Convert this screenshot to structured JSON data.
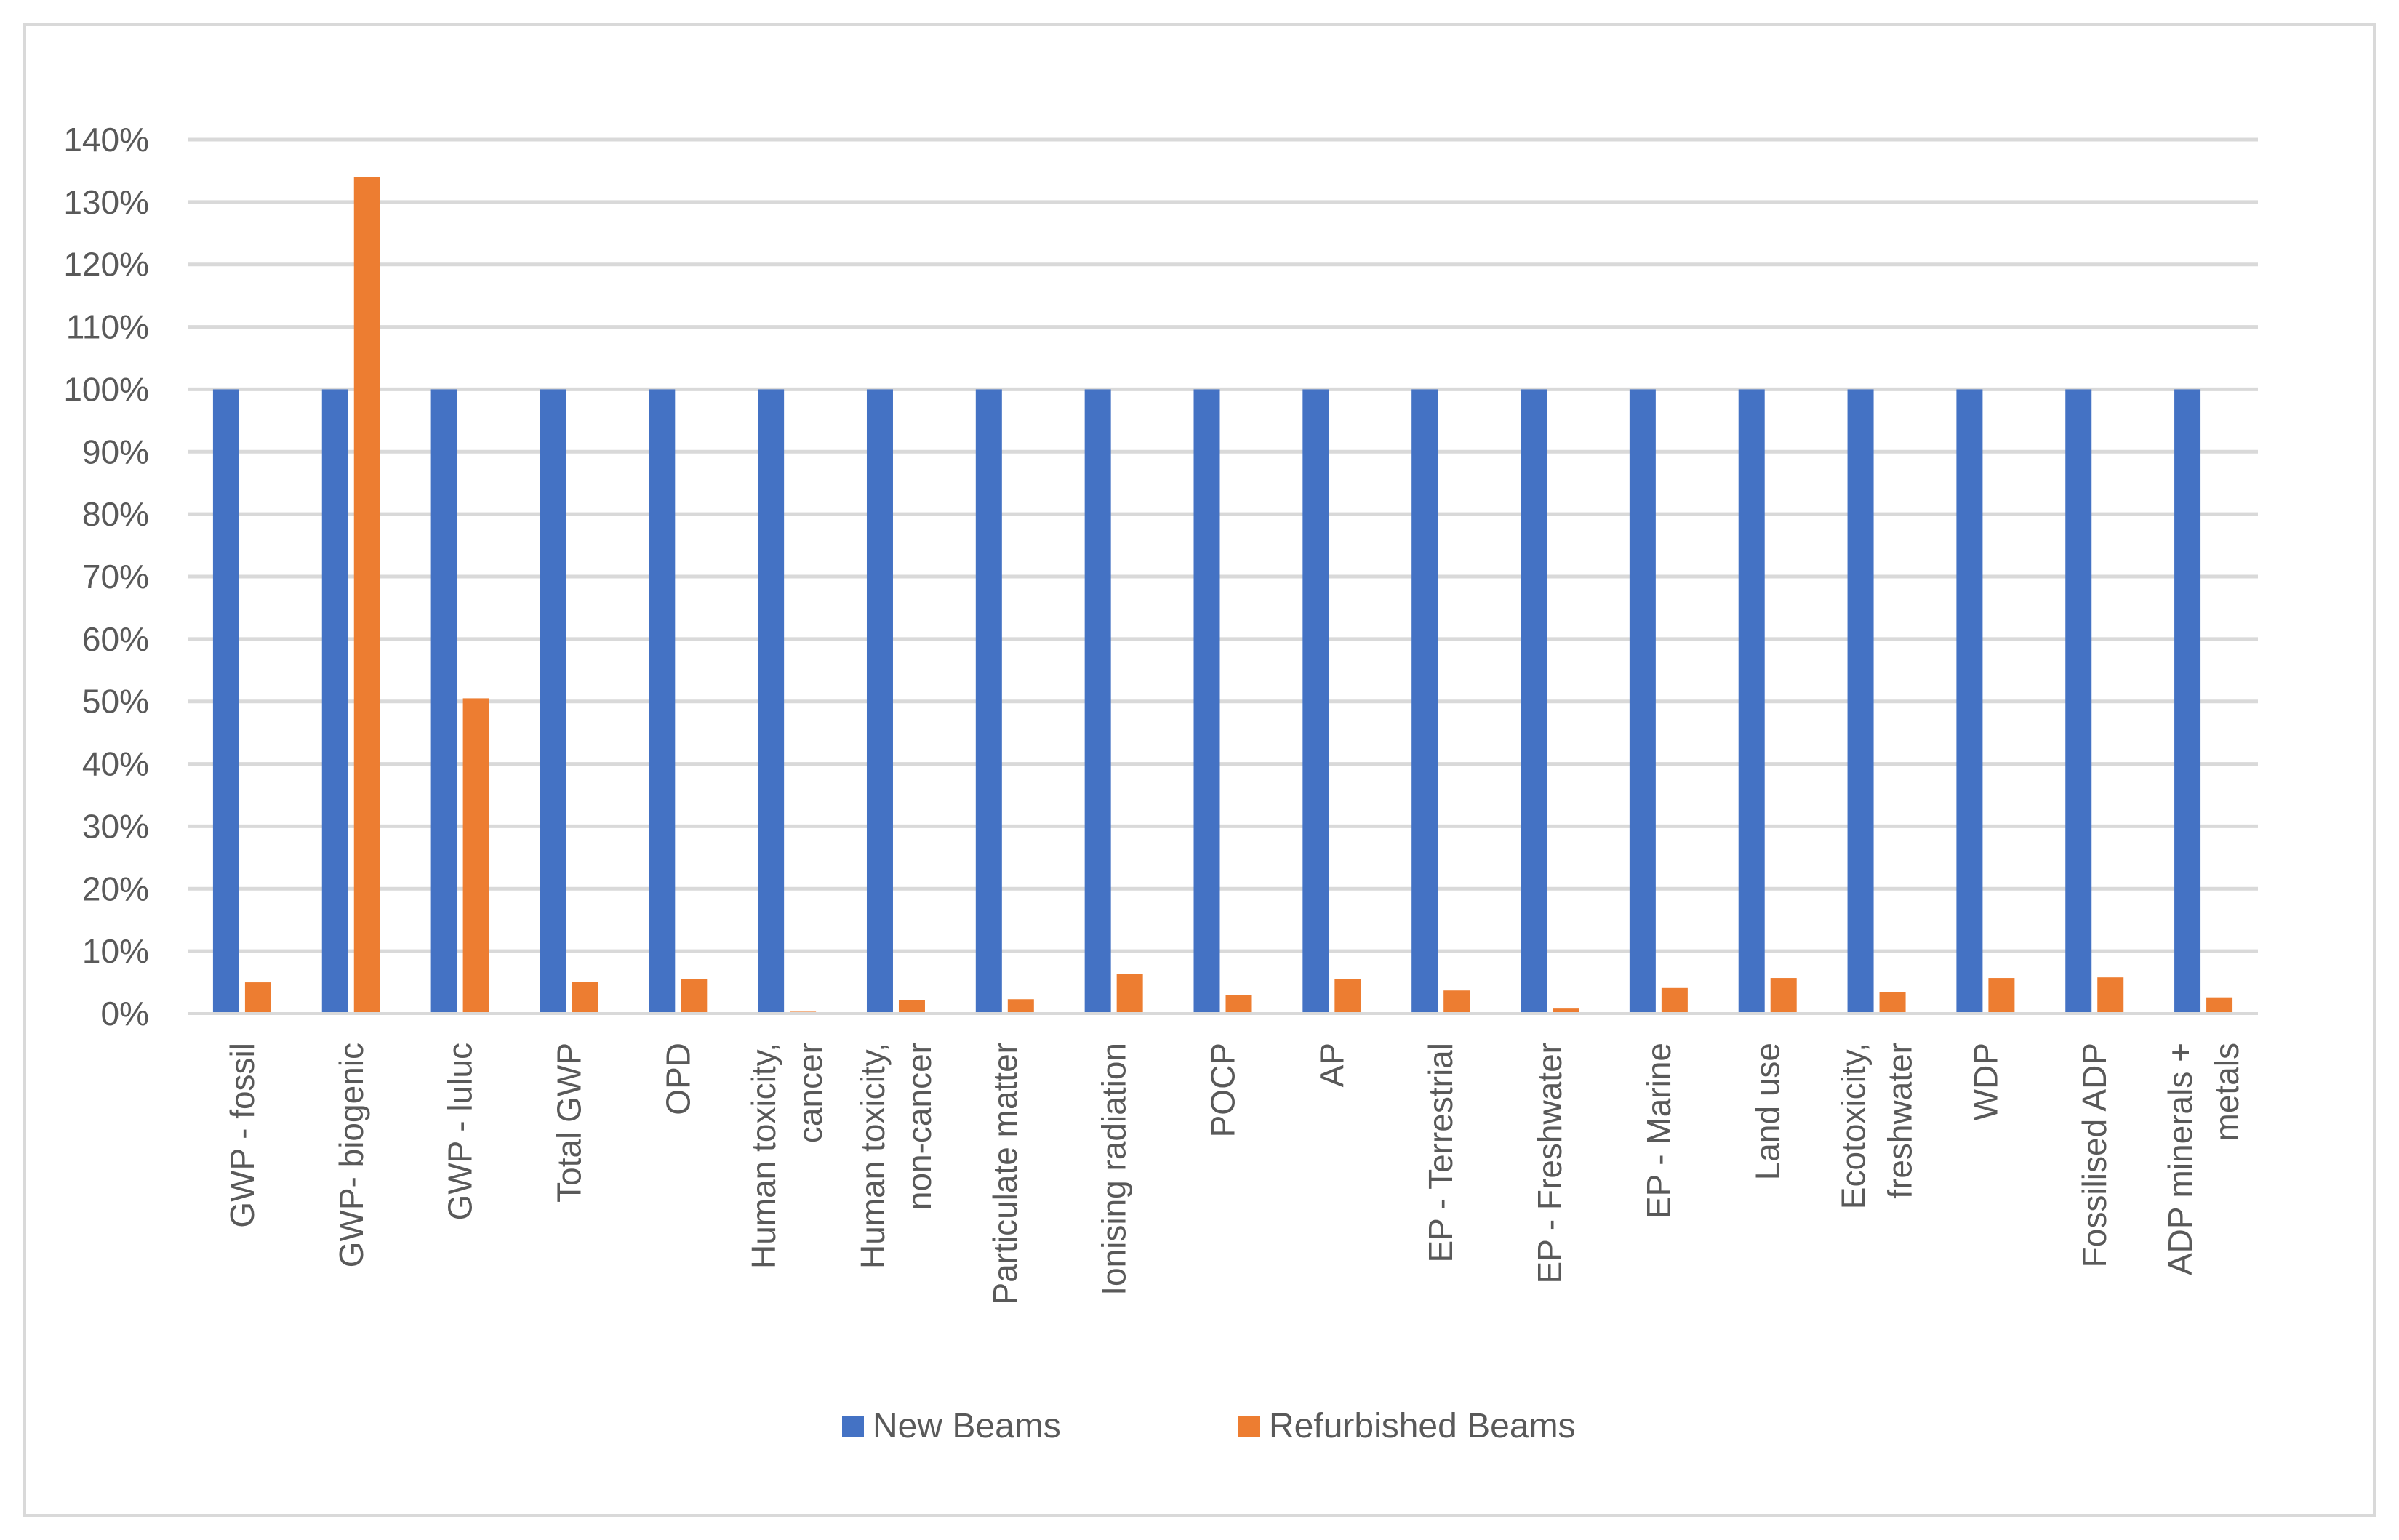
{
  "chart_data": {
    "type": "bar",
    "title": "",
    "xlabel": "",
    "ylabel": "",
    "ylim": [
      0,
      1.4
    ],
    "y_ticks": [
      "0%",
      "10%",
      "20%",
      "30%",
      "40%",
      "50%",
      "60%",
      "70%",
      "80%",
      "90%",
      "100%",
      "110%",
      "120%",
      "130%",
      "140%"
    ],
    "grid": true,
    "legend_position": "bottom",
    "categories": [
      [
        "GWP - fossil"
      ],
      [
        "GWP- biogenic"
      ],
      [
        "GWP - luluc"
      ],
      [
        "Total GWP"
      ],
      [
        "OPD"
      ],
      [
        "Human toxicity,",
        "cancer"
      ],
      [
        "Human toxicity,",
        "non-cancer"
      ],
      [
        "Particulate matter"
      ],
      [
        "Ionising radiation"
      ],
      [
        "POCP"
      ],
      [
        "AP"
      ],
      [
        "EP - Terrestrial"
      ],
      [
        "EP - Freshwater"
      ],
      [
        "EP - Marine"
      ],
      [
        "Land use"
      ],
      [
        "Ecotoxicity,",
        "freshwater"
      ],
      [
        "WDP"
      ],
      [
        "Fossilised ADP"
      ],
      [
        "ADP minerals +",
        "metals"
      ]
    ],
    "series": [
      {
        "name": "New Beams",
        "color": "#4472C4",
        "values": [
          1,
          1,
          1,
          1,
          1,
          1,
          1,
          1,
          1,
          1,
          1,
          1,
          1,
          1,
          1,
          1,
          1,
          1,
          1
        ]
      },
      {
        "name": "Refurbished Beams",
        "color": "#ED7D31",
        "values": [
          0.05,
          1.34,
          0.505,
          0.051,
          0.055,
          0.003,
          0.022,
          0.023,
          0.064,
          0.03,
          0.055,
          0.037,
          0.008,
          0.041,
          0.057,
          0.034,
          0.057,
          0.058,
          0.026
        ]
      }
    ]
  }
}
